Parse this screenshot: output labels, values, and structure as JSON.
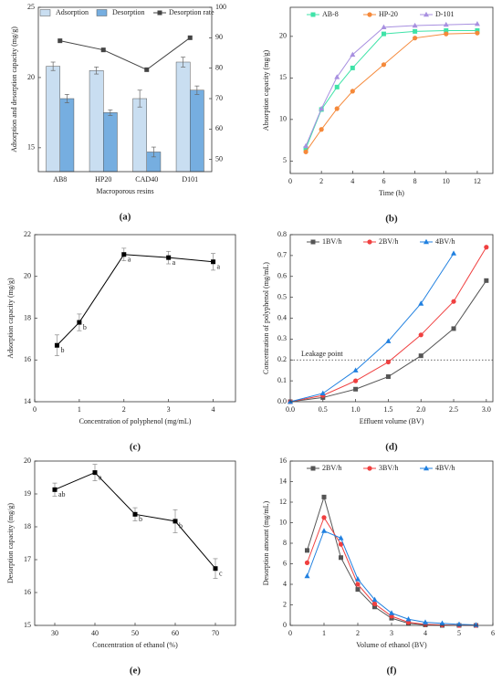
{
  "chart_data": [
    {
      "type": "bar",
      "label": "(a)",
      "xlabel": "Macroporous resins",
      "ylabel": "Adsorption and desorption capacity (mg/g)",
      "categories": [
        "AB8",
        "HP20",
        "CAD40",
        "D101"
      ],
      "ylim": [
        13.3,
        25
      ],
      "yticks": [
        15,
        20,
        25
      ],
      "y2lim": [
        46,
        100
      ],
      "y2ticks": [
        50,
        60,
        70,
        80,
        90,
        100
      ],
      "series": [
        {
          "name": "Adsorption",
          "color": "#c9def1",
          "values": [
            20.8,
            20.5,
            18.5,
            21.1
          ],
          "errors": [
            0.3,
            0.25,
            0.6,
            0.35
          ]
        },
        {
          "name": "Desorption",
          "color": "#76aee0",
          "values": [
            18.5,
            17.5,
            14.7,
            19.1
          ],
          "errors": [
            0.3,
            0.2,
            0.35,
            0.3
          ]
        },
        {
          "name": "Desorption rate",
          "color": "#444444",
          "axis": "y2",
          "marker": "square",
          "values": [
            89,
            86,
            79.5,
            90
          ]
        }
      ]
    },
    {
      "type": "line",
      "label": "(b)",
      "xlabel": "Time (h)",
      "ylabel": "Absorption capacity (mg/g)",
      "x": [
        1,
        2,
        3,
        4,
        6,
        8,
        10,
        12
      ],
      "xlim": [
        0,
        13
      ],
      "xticks": [
        0,
        2,
        4,
        6,
        8,
        10,
        12
      ],
      "ylim": [
        3.5,
        23.5
      ],
      "yticks": [
        5,
        10,
        15,
        20
      ],
      "series": [
        {
          "name": "AB-8",
          "color": "#3fe3a8",
          "marker": "square",
          "values": [
            6.5,
            11.2,
            13.9,
            16.2,
            20.3,
            20.6,
            20.7,
            20.7
          ]
        },
        {
          "name": "HP-20",
          "color": "#f5893a",
          "marker": "circle",
          "values": [
            6.1,
            8.8,
            11.3,
            13.4,
            16.6,
            19.8,
            20.3,
            20.4
          ]
        },
        {
          "name": "D-101",
          "color": "#a890e0",
          "marker": "triangle",
          "values": [
            6.8,
            11.3,
            15.1,
            17.8,
            21.1,
            21.3,
            21.4,
            21.5
          ]
        }
      ]
    },
    {
      "type": "line",
      "label": "(c)",
      "xlabel": "Concentration of polyphenol (mg/mL)",
      "ylabel": "Adsorption capacity (mg/g)",
      "x": [
        0.5,
        1,
        2,
        3,
        4
      ],
      "xlim": [
        0,
        4.5
      ],
      "xticks": [
        0,
        1,
        2,
        3,
        4
      ],
      "ylim": [
        14,
        22
      ],
      "yticks": [
        14,
        16,
        18,
        20,
        22
      ],
      "series": [
        {
          "color": "#000000",
          "marker": "square",
          "values": [
            16.7,
            17.8,
            21.05,
            20.9,
            20.7
          ],
          "errors": [
            0.5,
            0.4,
            0.3,
            0.3,
            0.4
          ],
          "letters": [
            "b",
            "b",
            "a",
            "a",
            "a"
          ]
        }
      ]
    },
    {
      "type": "line",
      "label": "(d)",
      "xlabel": "Effluent volume (BV)",
      "ylabel": "Concentration of polyphenol (mg/mL)",
      "x": [
        0,
        0.5,
        1,
        1.5,
        2,
        2.5,
        3
      ],
      "xlim": [
        0,
        3.1
      ],
      "xticks": [
        {
          "value": 0,
          "label": "0.0"
        },
        0.5,
        {
          "value": 1,
          "label": "1.0"
        },
        1.5,
        {
          "value": 2,
          "label": "2.0"
        },
        2.5,
        {
          "value": 3,
          "label": "3.0"
        }
      ],
      "ylim": [
        0,
        0.8
      ],
      "yticks": [
        {
          "value": 0,
          "label": "0.0"
        },
        0.1,
        0.2,
        0.3,
        0.4,
        0.5,
        0.6,
        0.7,
        0.8
      ],
      "reference_line": {
        "value": 0.2,
        "label": "Leakage point"
      },
      "series": [
        {
          "name": "1BV/h",
          "color": "#555555",
          "marker": "square",
          "values": [
            0,
            0.02,
            0.06,
            0.12,
            0.22,
            0.35,
            0.58
          ]
        },
        {
          "name": "2BV/h",
          "color": "#f04040",
          "marker": "circle",
          "values": [
            0,
            0.03,
            0.1,
            0.19,
            0.32,
            0.48,
            0.74
          ]
        },
        {
          "name": "4BV/h",
          "color": "#2080e0",
          "marker": "triangle",
          "values": [
            0,
            0.04,
            0.15,
            0.29,
            0.47,
            0.71,
            null
          ]
        }
      ]
    },
    {
      "type": "line",
      "label": "(e)",
      "xlabel": "Concentration of ethanol (%)",
      "ylabel": "Desorption capacity (mg/g)",
      "x": [
        30,
        40,
        50,
        60,
        70
      ],
      "xlim": [
        25,
        75
      ],
      "xticks": [
        30,
        40,
        50,
        60,
        70
      ],
      "ylim": [
        15,
        20
      ],
      "yticks": [
        15,
        16,
        17,
        18,
        19,
        20
      ],
      "series": [
        {
          "color": "#000000",
          "marker": "square",
          "values": [
            19.13,
            19.65,
            18.38,
            18.17,
            16.73
          ],
          "errors": [
            0.2,
            0.25,
            0.2,
            0.35,
            0.3
          ],
          "letters": [
            "ab",
            "a",
            "b",
            "b",
            "c"
          ]
        }
      ]
    },
    {
      "type": "line",
      "label": "(f)",
      "xlabel": "Volume of ethanol (BV)",
      "ylabel": "Desorption amount (mg/mL)",
      "x": [
        0.5,
        1,
        1.5,
        2,
        2.5,
        3,
        3.5,
        4,
        4.5,
        5,
        5.5
      ],
      "xlim": [
        0,
        6
      ],
      "xticks": [
        0,
        1,
        2,
        3,
        4,
        5,
        6
      ],
      "ylim": [
        0,
        16
      ],
      "yticks": [
        0,
        2,
        4,
        6,
        8,
        10,
        12,
        14,
        16
      ],
      "series": [
        {
          "name": "2BV/h",
          "color": "#555555",
          "marker": "square",
          "values": [
            7.3,
            12.5,
            6.6,
            3.5,
            1.8,
            0.7,
            0.2,
            0.05,
            0,
            0,
            0
          ]
        },
        {
          "name": "3BV/h",
          "color": "#f04040",
          "marker": "circle",
          "values": [
            6.1,
            10.5,
            7.9,
            4.0,
            2.1,
            0.9,
            0.3,
            0.1,
            0.05,
            0,
            0
          ]
        },
        {
          "name": "4BV/h",
          "color": "#2080e0",
          "marker": "triangle",
          "values": [
            4.8,
            9.2,
            8.5,
            4.5,
            2.5,
            1.2,
            0.6,
            0.3,
            0.2,
            0.1,
            0.05
          ]
        }
      ]
    }
  ]
}
